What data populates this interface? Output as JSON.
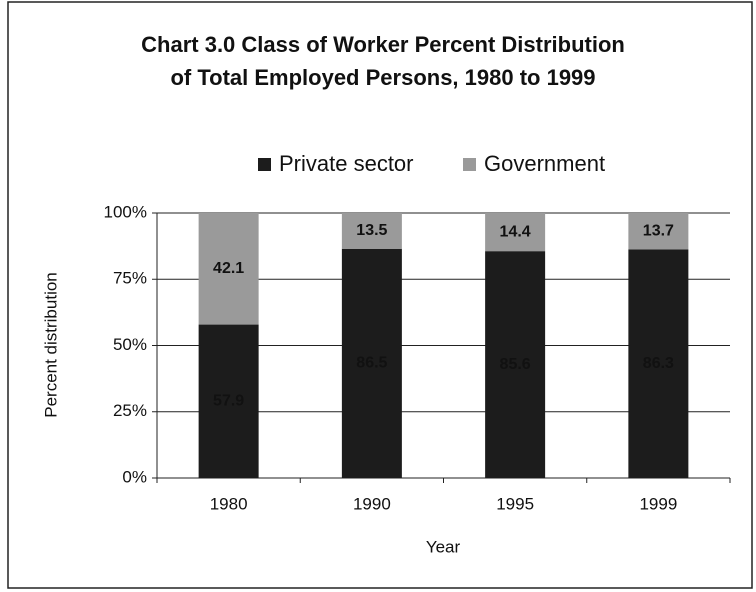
{
  "chart_data": {
    "type": "stacked_bar",
    "title": [
      "Chart 3.0 Class of Worker Percent Distribution",
      "of Total Employed Persons, 1980 to 1999"
    ],
    "x_label": "Year",
    "y_label": "Percent distribution",
    "categories": [
      "1980",
      "1990",
      "1995",
      "1999"
    ],
    "series": [
      {
        "name": "Private sector",
        "color": "#1c1c1c",
        "values": [
          57.9,
          86.5,
          85.6,
          86.3
        ]
      },
      {
        "name": "Government",
        "color": "#9a9a9a",
        "values": [
          42.1,
          13.5,
          14.4,
          13.7
        ]
      }
    ],
    "ylim": [
      0,
      100
    ],
    "yticks": [
      {
        "value": 0,
        "label": "0%"
      },
      {
        "value": 25,
        "label": "25%"
      },
      {
        "value": 50,
        "label": "50%"
      },
      {
        "value": 75,
        "label": "75%"
      },
      {
        "value": 100,
        "label": "100%"
      }
    ],
    "grid": true,
    "legend": "top"
  }
}
